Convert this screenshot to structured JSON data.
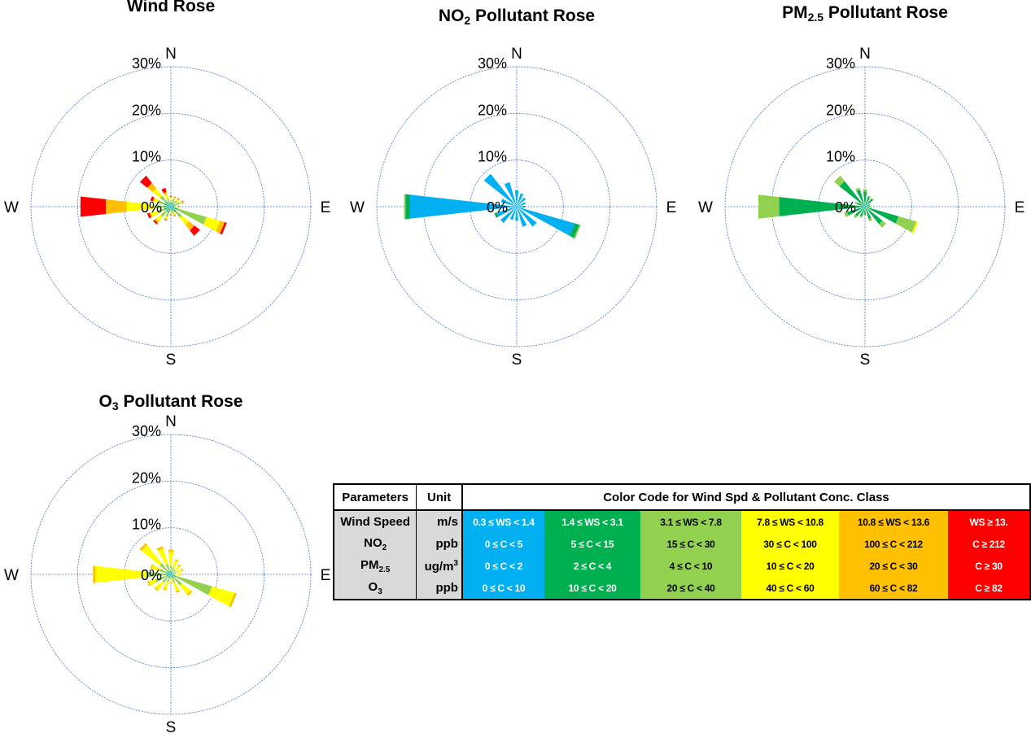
{
  "colors": [
    "#00b0f0",
    "#00b050",
    "#92d050",
    "#ffff00",
    "#ffc000",
    "#ff0000"
  ],
  "grid_color": "#4472c4",
  "compass": {
    "n": "N",
    "e": "E",
    "s": "S",
    "w": "W"
  },
  "rings": [
    "10%",
    "20%",
    "30%",
    "0%"
  ],
  "chart_data": [
    {
      "type": "wind-rose",
      "title": "Wind Rose",
      "r_unit": "%",
      "r_ticks": [
        0,
        10,
        20,
        30
      ],
      "rmax": 30,
      "directions_deg": [
        0,
        22.5,
        45,
        67.5,
        90,
        112.5,
        135,
        157.5,
        180,
        202.5,
        225,
        247.5,
        270,
        292.5,
        315,
        337.5
      ],
      "bins": [
        [
          0.3,
          0.5,
          0.4,
          0.4,
          0.3,
          0.5,
          0.5,
          0.4,
          0.3,
          0.5,
          0.5,
          0.5,
          0.5,
          0.5,
          0.5,
          0.4
        ],
        [
          0.5,
          0.6,
          0.5,
          0.6,
          0.4,
          1.0,
          1.0,
          0.5,
          0.5,
          0.8,
          0.8,
          1.0,
          1.0,
          1.0,
          1.0,
          0.6
        ],
        [
          0.6,
          0.7,
          0.8,
          1.0,
          0.5,
          6.5,
          1.5,
          0.6,
          0.5,
          1.0,
          1.5,
          1.5,
          2.0,
          1.5,
          1.5,
          0.8
        ],
        [
          0.5,
          0.3,
          0.4,
          0.5,
          0.3,
          3.0,
          2.0,
          0.4,
          0.3,
          0.5,
          1.2,
          1.5,
          6.0,
          0.8,
          2.0,
          1.0
        ],
        [
          0.3,
          0.1,
          0.2,
          0.2,
          0.1,
          1.0,
          1.5,
          0.2,
          0.1,
          0.2,
          0.5,
          0.3,
          4.5,
          0.3,
          1.5,
          0.5
        ],
        [
          0.1,
          0.1,
          0.1,
          0.1,
          0.1,
          0.5,
          1.5,
          0.1,
          0.1,
          0.1,
          0.4,
          0.5,
          5.5,
          0.5,
          2.0,
          0.9
        ]
      ]
    },
    {
      "type": "wind-rose",
      "title_main": "NO",
      "title_sub": "2",
      "title_rest": " Pollutant Rose",
      "r_unit": "%",
      "r_ticks": [
        0,
        10,
        20,
        30
      ],
      "rmax": 30,
      "directions_deg": [
        0,
        22.5,
        45,
        67.5,
        90,
        112.5,
        135,
        157.5,
        180,
        202.5,
        225,
        247.5,
        270,
        292.5,
        315,
        337.5
      ],
      "bins": [
        [
          3.5,
          3.0,
          2.5,
          2.0,
          1.5,
          13.0,
          5.5,
          4.5,
          3.0,
          3.0,
          4.5,
          4.5,
          23.0,
          3.5,
          9.0,
          5.5
        ],
        [
          0,
          0,
          0,
          0,
          0.3,
          1.0,
          0,
          0,
          0,
          0,
          0,
          0.5,
          1.0,
          0,
          0,
          0
        ],
        [
          0,
          0,
          0,
          0,
          0,
          0.3,
          0,
          0,
          0,
          0,
          0,
          0,
          0.3,
          0,
          0,
          0
        ],
        [
          0,
          0,
          0,
          0,
          0,
          0,
          0,
          0,
          0,
          0,
          0,
          0,
          0,
          0,
          0,
          0
        ],
        [
          0,
          0,
          0,
          0,
          0,
          0,
          0,
          0,
          0,
          0,
          0,
          0,
          0,
          0,
          0,
          0
        ],
        [
          0,
          0,
          0,
          0,
          0,
          0,
          0,
          0,
          0,
          0,
          0,
          0,
          0,
          0,
          0,
          0
        ]
      ]
    },
    {
      "type": "wind-rose",
      "title_main": "PM",
      "title_sub": "2.5",
      "title_rest": " Pollutant Rose",
      "r_unit": "%",
      "r_ticks": [
        0,
        10,
        20,
        30
      ],
      "rmax": 30,
      "directions_deg": [
        0,
        22.5,
        45,
        67.5,
        90,
        112.5,
        135,
        157.5,
        180,
        202.5,
        225,
        247.5,
        270,
        292.5,
        315,
        337.5
      ],
      "bins": [
        [
          0.3,
          0.2,
          0.2,
          0.1,
          0.2,
          0.5,
          0.3,
          0.3,
          0.2,
          0.2,
          0.2,
          0.5,
          0.5,
          0.3,
          0.5,
          0.3
        ],
        [
          3.0,
          2.0,
          2.0,
          1.0,
          1.0,
          7.0,
          4.5,
          2.5,
          1.5,
          2.0,
          2.5,
          3.5,
          18.0,
          1.5,
          6.5,
          3.5
        ],
        [
          0.5,
          0.3,
          0.2,
          0.2,
          0.2,
          4.0,
          1.0,
          0.5,
          0.3,
          0.3,
          0.5,
          0.7,
          4.5,
          0.5,
          1.5,
          0.5
        ],
        [
          0,
          0,
          0,
          0,
          0,
          0.4,
          0,
          0,
          0,
          0,
          0,
          0,
          0,
          0,
          0,
          0
        ],
        [
          0,
          0,
          0,
          0,
          0,
          0,
          0,
          0,
          0,
          0,
          0,
          0,
          0,
          0,
          0,
          0
        ],
        [
          0,
          0,
          0,
          0,
          0,
          0,
          0,
          0,
          0,
          0,
          0,
          0,
          0,
          0,
          0,
          0
        ]
      ]
    },
    {
      "type": "wind-rose",
      "title_main": "O",
      "title_sub": "3",
      "title_rest": " Pollutant Rose",
      "r_unit": "%",
      "r_ticks": [
        0,
        10,
        20,
        30
      ],
      "rmax": 30,
      "directions_deg": [
        0,
        22.5,
        45,
        67.5,
        90,
        112.5,
        135,
        157.5,
        180,
        202.5,
        225,
        247.5,
        270,
        292.5,
        315,
        337.5
      ],
      "bins": [
        [
          0.3,
          0.2,
          0.2,
          0.2,
          0.2,
          0.4,
          0.4,
          0.3,
          0.2,
          0.3,
          0.3,
          0.4,
          0.5,
          0.4,
          0.4,
          0.3
        ],
        [
          0.5,
          0.4,
          0.3,
          0.3,
          0.3,
          0.8,
          0.6,
          0.5,
          0.3,
          0.5,
          0.5,
          0.6,
          0.8,
          0.6,
          0.7,
          0.5
        ],
        [
          1.0,
          1.0,
          0.8,
          0.8,
          0.5,
          8.0,
          2.0,
          1.0,
          0.6,
          1.0,
          1.5,
          2.5,
          4.0,
          1.5,
          2.0,
          1.5
        ],
        [
          3.0,
          1.5,
          1.2,
          1.2,
          1.0,
          5.0,
          2.5,
          2.0,
          0.8,
          1.5,
          2.0,
          1.5,
          11.0,
          1.8,
          5.0,
          3.5
        ],
        [
          0.5,
          0.3,
          0.3,
          0.3,
          0.2,
          0.5,
          0.4,
          0.3,
          0.2,
          0.3,
          0.3,
          0.3,
          0.5,
          0.3,
          0.5,
          0.5
        ],
        [
          0,
          0,
          0,
          0,
          0,
          0,
          0,
          0,
          0,
          0,
          0,
          0,
          0,
          0,
          0,
          0
        ]
      ]
    }
  ],
  "legend": {
    "headers": {
      "parameters": "Parameters",
      "unit": "Unit",
      "color_code": "Color Code for Wind Spd & Pollutant Conc. Class"
    },
    "rows": [
      {
        "param_main": "Wind Speed",
        "param_sub": "",
        "unit_main": "m/s",
        "unit_sup": "",
        "classes": [
          "0.3 ≤ WS < 1.4",
          "1.4 ≤ WS < 3.1",
          "3.1 ≤ WS < 7.8",
          "7.8 ≤ WS < 10.8",
          "10.8 ≤ WS < 13.6",
          "WS ≥ 13."
        ]
      },
      {
        "param_main": "NO",
        "param_sub": "2",
        "unit_main": "ppb",
        "unit_sup": "",
        "classes": [
          "0 ≤ C < 5",
          "5 ≤ C < 15",
          "15 ≤ C < 30",
          "30 ≤ C < 100",
          "100 ≤ C < 212",
          "C ≥ 212"
        ]
      },
      {
        "param_main": "PM",
        "param_sub": "2.5",
        "unit_main": "ug/m",
        "unit_sup": "3",
        "classes": [
          "0 ≤ C < 2",
          "2 ≤ C < 4",
          "4 ≤ C < 10",
          "10 ≤ C < 20",
          "20 ≤ C < 30",
          "C ≥ 30"
        ]
      },
      {
        "param_main": "O",
        "param_sub": "3",
        "unit_main": "ppb",
        "unit_sup": "",
        "classes": [
          "0 ≤ C < 10",
          "10 ≤ C < 20",
          "20 ≤ C < 40",
          "40 ≤ C < 60",
          "60 ≤ C < 82",
          "C ≥ 82"
        ]
      }
    ]
  }
}
